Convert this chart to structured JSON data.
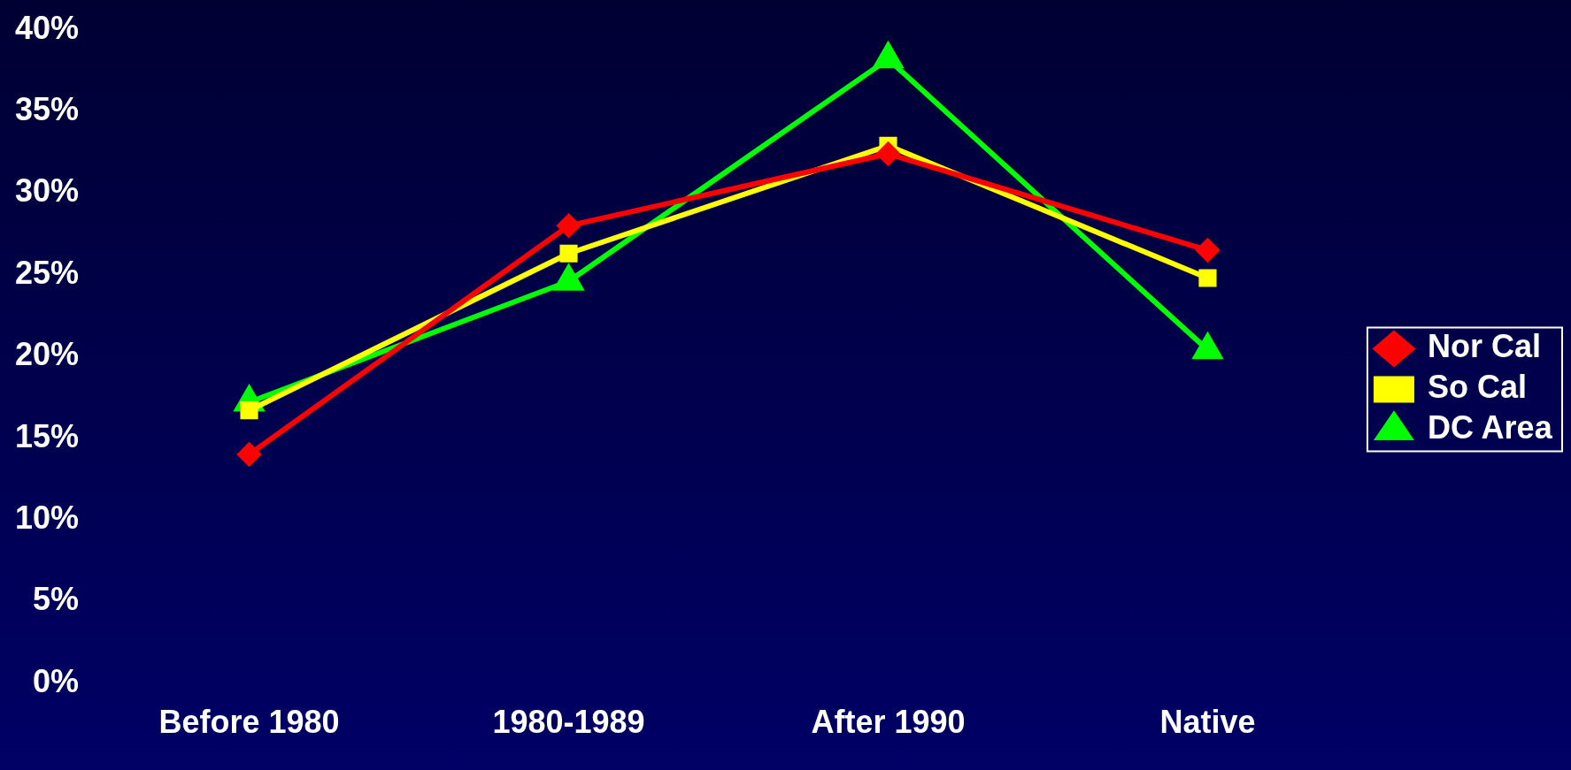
{
  "chart_data": {
    "type": "line",
    "categories": [
      "Before 1980",
      "1980-1989",
      "After 1990",
      "Native"
    ],
    "series": [
      {
        "name": "Nor Cal",
        "color": "#ff0000",
        "marker": "diamond",
        "values": [
          14,
          28,
          32.4,
          26.5
        ]
      },
      {
        "name": "So Cal",
        "color": "#ffff00",
        "marker": "square",
        "values": [
          16.7,
          26.3,
          32.9,
          24.8
        ]
      },
      {
        "name": "DC Area",
        "color": "#00ff00",
        "marker": "triangle",
        "values": [
          17.2,
          24.6,
          38.2,
          20.4
        ]
      }
    ],
    "ylim": [
      0,
      40
    ],
    "yticks": [
      {
        "value": 0,
        "label": "0%"
      },
      {
        "value": 5,
        "label": "5%"
      },
      {
        "value": 10,
        "label": "10%"
      },
      {
        "value": 15,
        "label": "15%"
      },
      {
        "value": 20,
        "label": "20%"
      },
      {
        "value": 25,
        "label": "25%"
      },
      {
        "value": 30,
        "label": "30%"
      },
      {
        "value": 35,
        "label": "35%"
      },
      {
        "value": 40,
        "label": "40%"
      }
    ],
    "grid": false,
    "legend": "right"
  }
}
